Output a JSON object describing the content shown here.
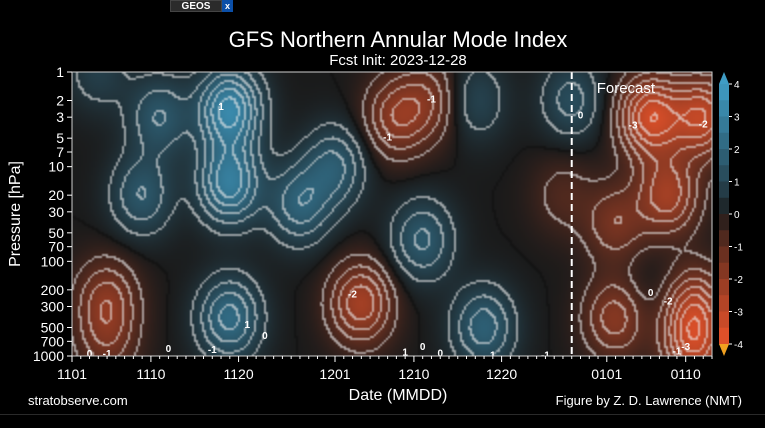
{
  "browser_tabs": {
    "active_label": "GEOS",
    "close_glyph": "x"
  },
  "chart_data": {
    "type": "heatmap",
    "title": "GFS Northern Annular Mode Index",
    "subtitle": "Fcst Init: 2023-12-28",
    "xlabel": "Date (MMDD)",
    "ylabel": "Pressure [hPa]",
    "x_ticks": [
      {
        "label": "1101",
        "day": 0
      },
      {
        "label": "1110",
        "day": 9
      },
      {
        "label": "1120",
        "day": 19
      },
      {
        "label": "1201",
        "day": 30
      },
      {
        "label": "1210",
        "day": 39
      },
      {
        "label": "1220",
        "day": 49
      },
      {
        "label": "0101",
        "day": 61
      },
      {
        "label": "0110",
        "day": 70
      }
    ],
    "x_range_days": [
      0,
      73
    ],
    "forecast_start_day": 57,
    "forecast_label": "Forecast",
    "y_ticks": [
      {
        "label": "1",
        "p": 1
      },
      {
        "label": "2",
        "p": 2
      },
      {
        "label": "3",
        "p": 3
      },
      {
        "label": "5",
        "p": 5
      },
      {
        "label": "7",
        "p": 7
      },
      {
        "label": "10",
        "p": 10
      },
      {
        "label": "20",
        "p": 20
      },
      {
        "label": "30",
        "p": 30
      },
      {
        "label": "50",
        "p": 50
      },
      {
        "label": "70",
        "p": 70
      },
      {
        "label": "100",
        "p": 100
      },
      {
        "label": "200",
        "p": 200
      },
      {
        "label": "300",
        "p": 300
      },
      {
        "label": "500",
        "p": 500
      },
      {
        "label": "700",
        "p": 700
      },
      {
        "label": "1000",
        "p": 1000
      }
    ],
    "y_range_hpa": [
      1,
      1000
    ],
    "colorbar": {
      "min": -4,
      "max": 4,
      "ticks": [
        "4",
        "3",
        "2",
        "1",
        "0",
        "-1",
        "-2",
        "-3",
        "-4"
      ],
      "positive_color": "#3f9cc4",
      "negative_color": "#e8532a",
      "neutral_color": "#1a1a1a"
    },
    "features": [
      {
        "day": 18,
        "p": 2.5,
        "value": 3.2
      },
      {
        "day": 18,
        "p": 15,
        "value": 2.8
      },
      {
        "day": 18,
        "p": 400,
        "value": 2.2
      },
      {
        "day": 8,
        "p": 20,
        "value": 1.5
      },
      {
        "day": 10,
        "p": 3,
        "value": 1.5
      },
      {
        "day": 3,
        "p": 1,
        "value": 0.8
      },
      {
        "day": 26,
        "p": 25,
        "value": 1.8
      },
      {
        "day": 30,
        "p": 10,
        "value": 1.6
      },
      {
        "day": 40,
        "p": 60,
        "value": 1.6
      },
      {
        "day": 46,
        "p": 2,
        "value": 1.0
      },
      {
        "day": 47,
        "p": 500,
        "value": 1.8
      },
      {
        "day": 57,
        "p": 2,
        "value": 1.2
      },
      {
        "day": 33,
        "p": 280,
        "value": -2.4
      },
      {
        "day": 37,
        "p": 3,
        "value": -1.8
      },
      {
        "day": 41,
        "p": 2,
        "value": -1.3
      },
      {
        "day": 4,
        "p": 250,
        "value": -1.6
      },
      {
        "day": 4,
        "p": 700,
        "value": -1.1
      },
      {
        "day": 56,
        "p": 20,
        "value": -0.7
      },
      {
        "day": 66,
        "p": 3,
        "value": -3.3
      },
      {
        "day": 72,
        "p": 3,
        "value": -2.9
      },
      {
        "day": 68,
        "p": 20,
        "value": -2.3
      },
      {
        "day": 62,
        "p": 40,
        "value": -1.4
      },
      {
        "day": 62,
        "p": 400,
        "value": -1.8
      },
      {
        "day": 71,
        "p": 300,
        "value": -2.2
      },
      {
        "day": 71,
        "p": 800,
        "value": -2.5
      },
      {
        "day": 66,
        "p": 200,
        "value": 0.3
      }
    ],
    "contour_labels": [
      {
        "text": "1",
        "day": 17,
        "p": 2.3
      },
      {
        "text": "-1",
        "day": 41,
        "p": 1.9
      },
      {
        "text": "-1",
        "day": 36,
        "p": 4.8
      },
      {
        "text": "0",
        "day": 58,
        "p": 2.8
      },
      {
        "text": "-3",
        "day": 64,
        "p": 3.6
      },
      {
        "text": "-2",
        "day": 72,
        "p": 3.5
      },
      {
        "text": "-2",
        "day": 32,
        "p": 220
      },
      {
        "text": "0",
        "day": 66,
        "p": 210
      },
      {
        "text": "-2",
        "day": 68,
        "p": 260
      },
      {
        "text": "1",
        "day": 20,
        "p": 460
      },
      {
        "text": "0",
        "day": 22,
        "p": 600
      },
      {
        "text": "0",
        "day": 11,
        "p": 820
      },
      {
        "text": "-1",
        "day": 16,
        "p": 840
      },
      {
        "text": "-1",
        "day": 4,
        "p": 930
      },
      {
        "text": "0",
        "day": 2,
        "p": 930
      },
      {
        "text": "1",
        "day": 38,
        "p": 900
      },
      {
        "text": "0",
        "day": 40,
        "p": 780
      },
      {
        "text": "0",
        "day": 42,
        "p": 920
      },
      {
        "text": "1",
        "day": 48,
        "p": 960
      },
      {
        "text": "-1",
        "day": 54,
        "p": 960
      },
      {
        "text": "-1",
        "day": 69,
        "p": 880
      },
      {
        "text": "-3",
        "day": 70,
        "p": 780
      }
    ]
  },
  "footer": {
    "left_credit": "stratobserve.com",
    "right_credit": "Figure by Z. D. Lawrence (NMT)"
  }
}
